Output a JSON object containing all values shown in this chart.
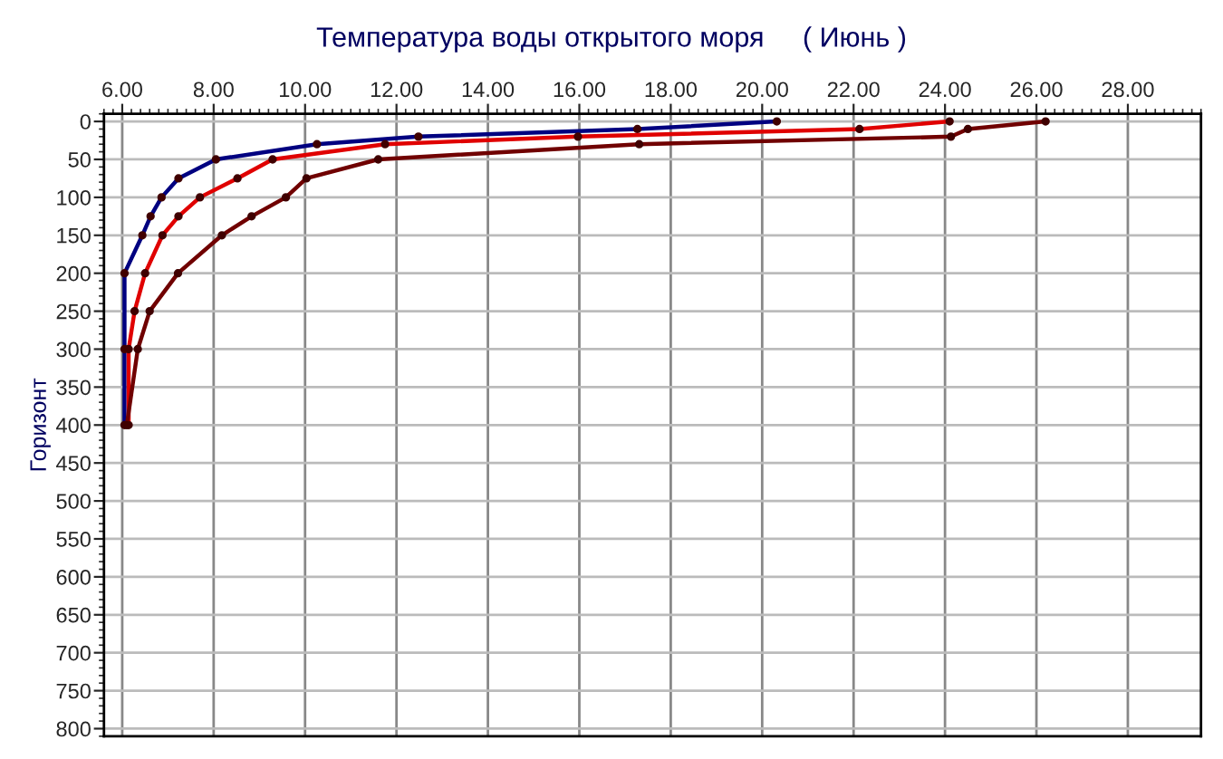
{
  "chart_data": {
    "type": "line",
    "title": "Температура воды открытого моря     ( Июнь )",
    "ylabel": "Горизонт",
    "marker": "circle",
    "line_style": "solid",
    "grid": true,
    "series": [
      {
        "color": "#000080",
        "x": [
          20.32,
          17.27,
          12.48,
          10.26,
          8.05,
          7.23,
          6.86,
          6.62,
          6.44,
          6.05,
          6.05,
          6.05
        ],
        "values": [
          0,
          10,
          20,
          30,
          50,
          75,
          100,
          125,
          150,
          200,
          300,
          400
        ]
      },
      {
        "color": "#e00000",
        "x": [
          24.1,
          22.13,
          15.97,
          11.75,
          9.29,
          8.52,
          7.7,
          7.23,
          6.88,
          6.5,
          6.27,
          6.14,
          6.14
        ],
        "values": [
          0,
          10,
          20,
          30,
          50,
          75,
          100,
          125,
          150,
          200,
          250,
          300,
          400
        ]
      },
      {
        "color": "#700000",
        "x": [
          26.2,
          24.5,
          24.13,
          17.31,
          11.6,
          10.03,
          9.58,
          8.83,
          8.18,
          7.22,
          6.6,
          6.34,
          6.1
        ],
        "values": [
          0,
          10,
          20,
          30,
          50,
          75,
          100,
          125,
          150,
          200,
          250,
          300,
          400
        ]
      }
    ],
    "xlim": [
      5.6,
      29.6
    ],
    "xticks": [
      {
        "value": 6,
        "label": "6.00"
      },
      {
        "value": 8,
        "label": "8.00"
      },
      {
        "value": 10,
        "label": "10.00"
      },
      {
        "value": 12,
        "label": "12.00"
      },
      {
        "value": 14,
        "label": "14.00"
      },
      {
        "value": 16,
        "label": "16.00"
      },
      {
        "value": 18,
        "label": "18.00"
      },
      {
        "value": 20,
        "label": "20.00"
      },
      {
        "value": 22,
        "label": "22.00"
      },
      {
        "value": 24,
        "label": "24.00"
      },
      {
        "value": 26,
        "label": "26.00"
      },
      {
        "value": 28,
        "label": "28.00"
      }
    ],
    "ylim": [
      810,
      -10
    ],
    "yticks": [
      0,
      50,
      100,
      150,
      200,
      250,
      300,
      350,
      400,
      450,
      500,
      550,
      600,
      650,
      700,
      750,
      800
    ]
  }
}
